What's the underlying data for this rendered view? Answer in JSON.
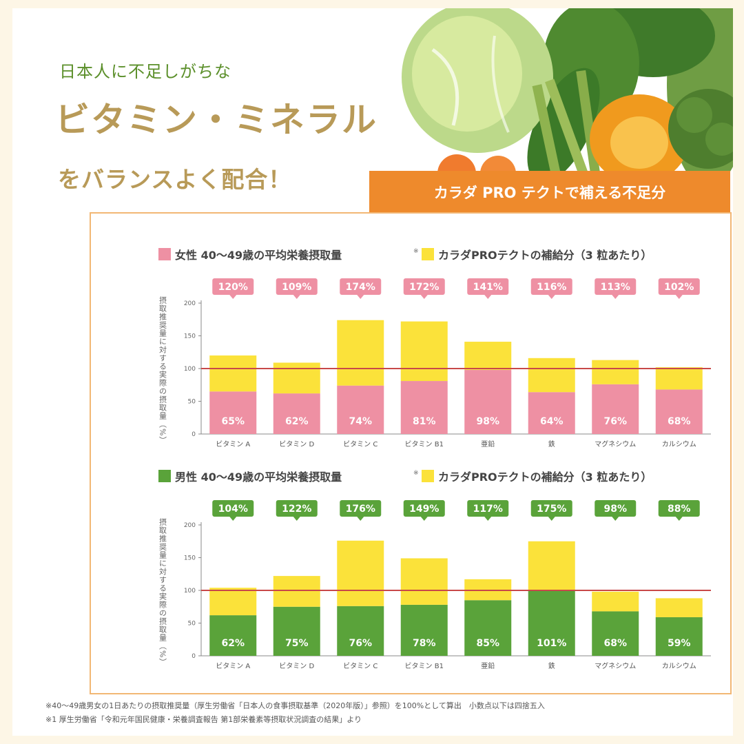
{
  "header": {
    "subtitle": "日本人に不足しがちな",
    "title": "ビタミン・ミネラル",
    "tagline": "をバランスよく配合！",
    "banner": "カラダ PRO テクトで補える不足分"
  },
  "colors": {
    "female": "#ee90a3",
    "male": "#5aa33a",
    "supplement": "#fbe23a",
    "reference_line": "#c84848",
    "banner": "#ee8a2c",
    "heading_gold": "#b89a58",
    "heading_green": "#5b8f2a",
    "panel_border": "#f2b774"
  },
  "footnotes": {
    "line1": "※40～49歳男女の1日あたりの摂取推奨量（厚生労働省「日本人の食事摂取基準（2020年版）」参照）を100%として算出　小数点以下は四捨五入",
    "line2": "※1 厚生労働省「令和元年国民健康・栄養調査報告 第1部栄養素等摂取状況調査の結果」より"
  },
  "chart_data": [
    {
      "type": "bar",
      "stacked": true,
      "ylabel": "摂取推奨量に対する実際の摂取量（%）",
      "ylim": [
        0,
        200
      ],
      "yticks": [
        0,
        50,
        100,
        150,
        200
      ],
      "reference_line": 100,
      "grid": false,
      "legend_position": "top",
      "categories": [
        "ビタミン A",
        "ビタミン D",
        "ビタミン C",
        "ビタミン B1",
        "亜鉛",
        "鉄",
        "マグネシウム",
        "カルシウム"
      ],
      "series": [
        {
          "name": "女性 40～49歳の平均栄養摂取量",
          "legend_mark": "※",
          "values": [
            65,
            62,
            74,
            81,
            98,
            64,
            76,
            68
          ],
          "labels": [
            "65%",
            "62%",
            "74%",
            "81%",
            "98%",
            "64%",
            "76%",
            "68%"
          ]
        },
        {
          "name": "カラダPROテクトの補給分（3 粒あたり）",
          "values": [
            55,
            47,
            100,
            91,
            43,
            52,
            37,
            34
          ]
        }
      ],
      "totals": [
        120,
        109,
        174,
        172,
        141,
        116,
        113,
        102
      ],
      "total_labels": [
        "120%",
        "109%",
        "174%",
        "172%",
        "141%",
        "116%",
        "113%",
        "102%"
      ]
    },
    {
      "type": "bar",
      "stacked": true,
      "ylabel": "摂取推奨量に対する実際の摂取量（%）",
      "ylim": [
        0,
        200
      ],
      "yticks": [
        0,
        50,
        100,
        150,
        200
      ],
      "reference_line": 100,
      "grid": false,
      "legend_position": "top",
      "categories": [
        "ビタミン A",
        "ビタミン D",
        "ビタミン C",
        "ビタミン B1",
        "亜鉛",
        "鉄",
        "マグネシウム",
        "カルシウム"
      ],
      "series": [
        {
          "name": "男性 40～49歳の平均栄養摂取量",
          "legend_mark": "※",
          "values": [
            62,
            75,
            76,
            78,
            85,
            101,
            68,
            59
          ],
          "labels": [
            "62%",
            "75%",
            "76%",
            "78%",
            "85%",
            "101%",
            "68%",
            "59%"
          ]
        },
        {
          "name": "カラダPROテクトの補給分（3 粒あたり）",
          "values": [
            42,
            47,
            100,
            71,
            32,
            74,
            30,
            29
          ]
        }
      ],
      "totals": [
        104,
        122,
        176,
        149,
        117,
        175,
        98,
        88
      ],
      "total_labels": [
        "104%",
        "122%",
        "176%",
        "149%",
        "117%",
        "175%",
        "98%",
        "88%"
      ]
    }
  ]
}
